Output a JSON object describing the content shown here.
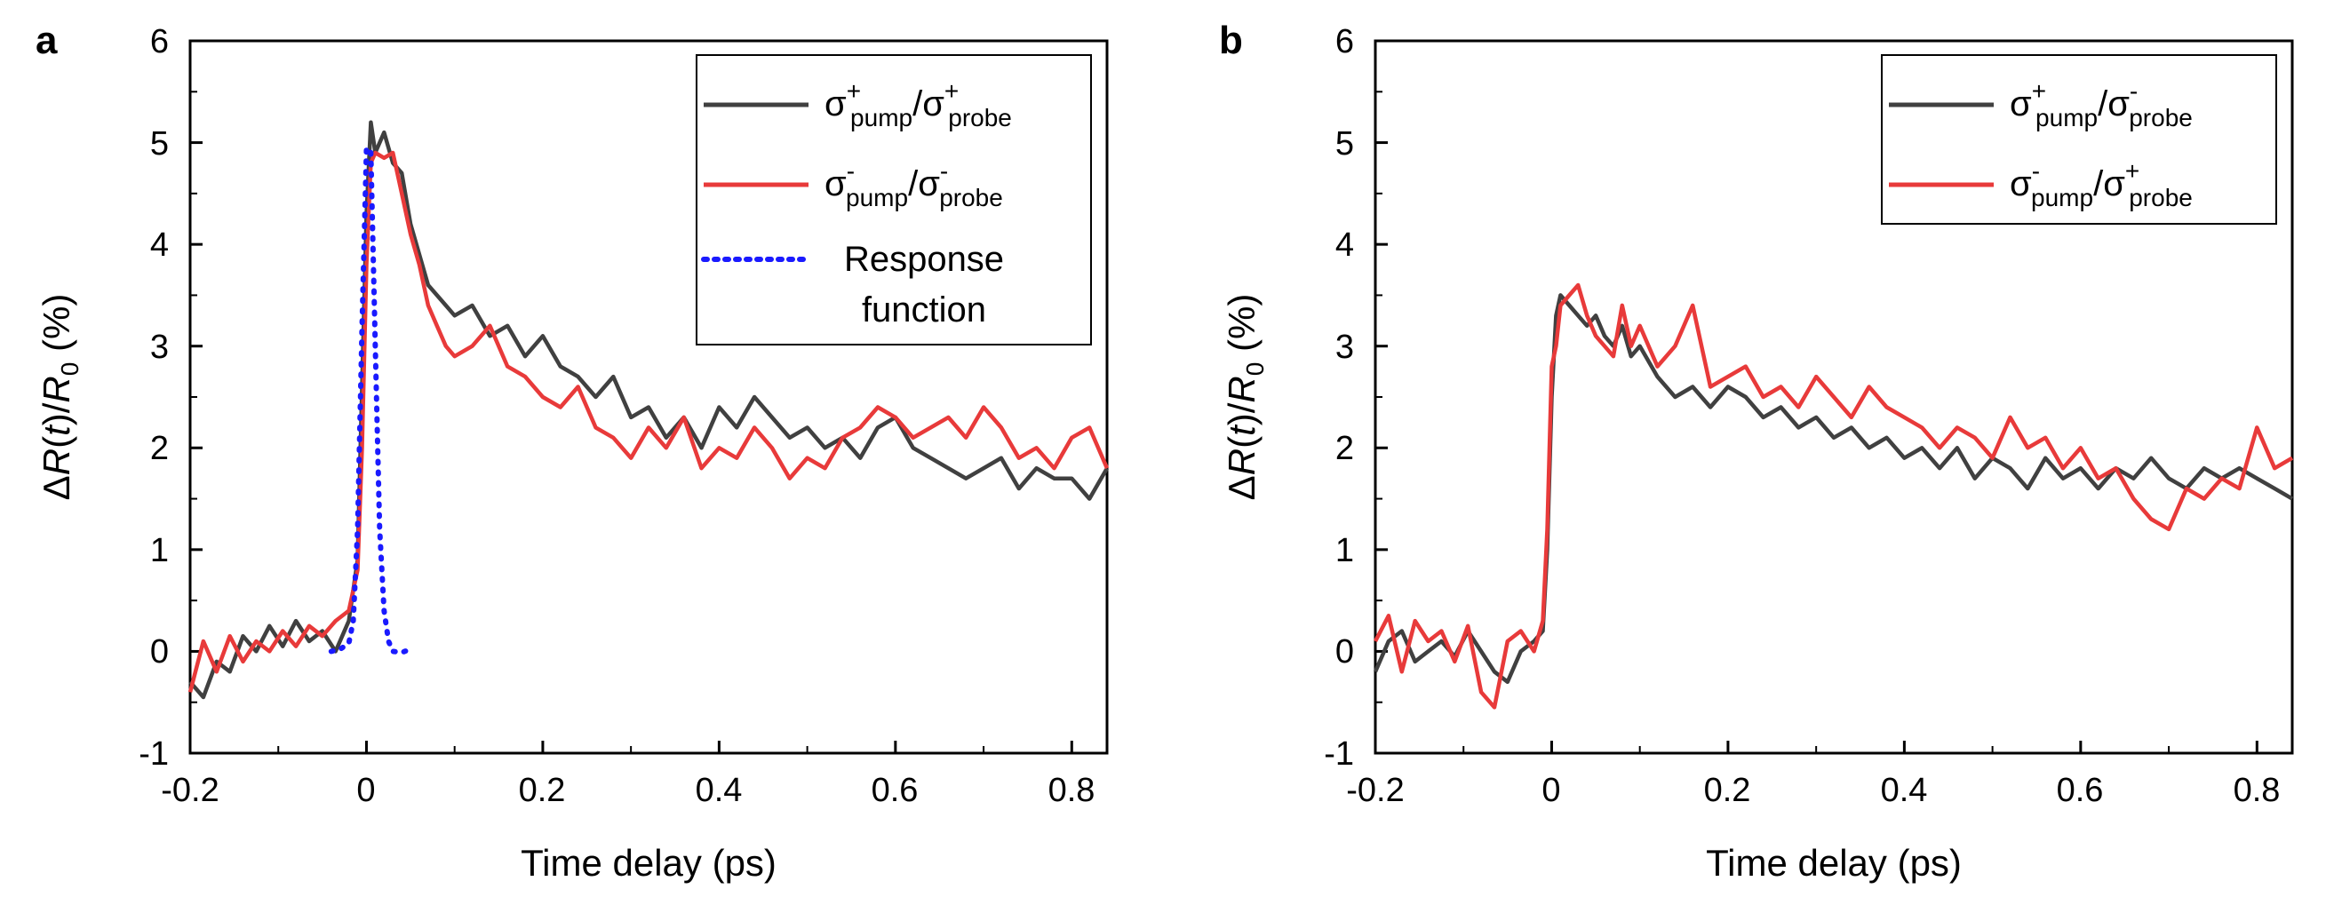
{
  "chart_data": [
    {
      "panel": "a",
      "type": "line",
      "xlabel": "Time delay (ps)",
      "ylabel": "ΔR(t)/R0 (%)",
      "xlim": [
        -0.2,
        0.84
      ],
      "ylim": [
        -1,
        6
      ],
      "xticks": [
        "-0.2",
        "0",
        "0.2",
        "0.4",
        "0.6",
        "0.8"
      ],
      "yticks": [
        "-1",
        "0",
        "1",
        "2",
        "3",
        "4",
        "5",
        "6"
      ],
      "legend_position": "top-right",
      "series": [
        {
          "name": "σ+pump/σ+probe",
          "legend": {
            "sym1": "σ",
            "sup1": "+",
            "sub1": "pump",
            "slash": "/",
            "sym2": "σ",
            "sup2": "+",
            "sub2": "probe"
          },
          "color": "#404040",
          "style": "solid",
          "x": [
            -0.2,
            -0.185,
            -0.17,
            -0.155,
            -0.14,
            -0.125,
            -0.11,
            -0.095,
            -0.08,
            -0.065,
            -0.05,
            -0.035,
            -0.02,
            -0.01,
            -0.005,
            0,
            0.005,
            0.01,
            0.02,
            0.03,
            0.04,
            0.05,
            0.06,
            0.07,
            0.08,
            0.09,
            0.1,
            0.12,
            0.14,
            0.16,
            0.18,
            0.2,
            0.22,
            0.24,
            0.26,
            0.28,
            0.3,
            0.32,
            0.34,
            0.36,
            0.38,
            0.4,
            0.42,
            0.44,
            0.46,
            0.48,
            0.5,
            0.52,
            0.54,
            0.56,
            0.58,
            0.6,
            0.62,
            0.64,
            0.66,
            0.68,
            0.7,
            0.72,
            0.74,
            0.76,
            0.78,
            0.8,
            0.82,
            0.84
          ],
          "y": [
            -0.3,
            -0.45,
            -0.1,
            -0.2,
            0.15,
            0.0,
            0.25,
            0.05,
            0.3,
            0.1,
            0.2,
            0.0,
            0.3,
            0.9,
            2.6,
            4.3,
            5.2,
            4.9,
            5.1,
            4.8,
            4.7,
            4.2,
            3.9,
            3.6,
            3.5,
            3.4,
            3.3,
            3.4,
            3.1,
            3.2,
            2.9,
            3.1,
            2.8,
            2.7,
            2.5,
            2.7,
            2.3,
            2.4,
            2.1,
            2.3,
            2.0,
            2.4,
            2.2,
            2.5,
            2.3,
            2.1,
            2.2,
            2.0,
            2.1,
            1.9,
            2.2,
            2.3,
            2.0,
            1.9,
            1.8,
            1.7,
            1.8,
            1.9,
            1.6,
            1.8,
            1.7,
            1.7,
            1.5,
            1.8
          ]
        },
        {
          "name": "σ-pump/σ-probe",
          "legend": {
            "sym1": "σ",
            "sup1": "-",
            "sub1": "pump",
            "slash": "/",
            "sym2": "σ",
            "sup2": "-",
            "sub2": "probe"
          },
          "color": "#e83a3a",
          "style": "solid",
          "x": [
            -0.2,
            -0.185,
            -0.17,
            -0.155,
            -0.14,
            -0.125,
            -0.11,
            -0.095,
            -0.08,
            -0.065,
            -0.05,
            -0.035,
            -0.02,
            -0.01,
            -0.005,
            0,
            0.005,
            0.01,
            0.02,
            0.03,
            0.04,
            0.05,
            0.06,
            0.07,
            0.08,
            0.09,
            0.1,
            0.12,
            0.14,
            0.16,
            0.18,
            0.2,
            0.22,
            0.24,
            0.26,
            0.28,
            0.3,
            0.32,
            0.34,
            0.36,
            0.38,
            0.4,
            0.42,
            0.44,
            0.46,
            0.48,
            0.5,
            0.52,
            0.54,
            0.56,
            0.58,
            0.6,
            0.62,
            0.64,
            0.66,
            0.68,
            0.7,
            0.72,
            0.74,
            0.76,
            0.78,
            0.8,
            0.82,
            0.84
          ],
          "y": [
            -0.4,
            0.1,
            -0.2,
            0.15,
            -0.1,
            0.1,
            0.0,
            0.2,
            0.05,
            0.25,
            0.15,
            0.3,
            0.4,
            0.8,
            2.0,
            3.8,
            4.8,
            4.9,
            4.85,
            4.9,
            4.5,
            4.1,
            3.8,
            3.4,
            3.2,
            3.0,
            2.9,
            3.0,
            3.2,
            2.8,
            2.7,
            2.5,
            2.4,
            2.6,
            2.2,
            2.1,
            1.9,
            2.2,
            2.0,
            2.3,
            1.8,
            2.0,
            1.9,
            2.2,
            2.0,
            1.7,
            1.9,
            1.8,
            2.1,
            2.2,
            2.4,
            2.3,
            2.1,
            2.2,
            2.3,
            2.1,
            2.4,
            2.2,
            1.9,
            2.0,
            1.8,
            2.1,
            2.2,
            1.8
          ]
        },
        {
          "name": "Response function",
          "legend": {
            "line1": "Response",
            "line2": "function"
          },
          "color": "#1a1aff",
          "style": "dotted",
          "x": [
            -0.04,
            -0.03,
            -0.02,
            -0.015,
            -0.01,
            -0.005,
            0,
            0.005,
            0.01,
            0.015,
            0.02,
            0.025,
            0.03,
            0.04,
            0.05
          ],
          "y": [
            0.0,
            0.02,
            0.08,
            0.3,
            1.2,
            3.2,
            4.95,
            4.9,
            3.0,
            1.2,
            0.4,
            0.1,
            0.0,
            -0.01,
            0.02
          ]
        }
      ]
    },
    {
      "panel": "b",
      "type": "line",
      "xlabel": "Time delay (ps)",
      "ylabel": "ΔR(t)/R0 (%)",
      "xlim": [
        -0.2,
        0.84
      ],
      "ylim": [
        -1,
        6
      ],
      "xticks": [
        "-0.2",
        "0",
        "0.2",
        "0.4",
        "0.6",
        "0.8"
      ],
      "yticks": [
        "-1",
        "0",
        "1",
        "2",
        "3",
        "4",
        "5",
        "6"
      ],
      "legend_position": "top-right",
      "series": [
        {
          "name": "σ+pump/σ-probe",
          "legend": {
            "sym1": "σ",
            "sup1": "+",
            "sub1": "pump",
            "slash": "/",
            "sym2": "σ",
            "sup2": "-",
            "sub2": "probe"
          },
          "color": "#404040",
          "style": "solid",
          "x": [
            -0.2,
            -0.185,
            -0.17,
            -0.155,
            -0.14,
            -0.125,
            -0.11,
            -0.095,
            -0.08,
            -0.065,
            -0.05,
            -0.035,
            -0.02,
            -0.01,
            -0.005,
            0,
            0.005,
            0.01,
            0.02,
            0.03,
            0.04,
            0.05,
            0.06,
            0.07,
            0.08,
            0.09,
            0.1,
            0.12,
            0.14,
            0.16,
            0.18,
            0.2,
            0.22,
            0.24,
            0.26,
            0.28,
            0.3,
            0.32,
            0.34,
            0.36,
            0.38,
            0.4,
            0.42,
            0.44,
            0.46,
            0.48,
            0.5,
            0.52,
            0.54,
            0.56,
            0.58,
            0.6,
            0.62,
            0.64,
            0.66,
            0.68,
            0.7,
            0.72,
            0.74,
            0.76,
            0.78,
            0.8,
            0.82,
            0.84
          ],
          "y": [
            -0.2,
            0.1,
            0.2,
            -0.1,
            0.0,
            0.1,
            -0.05,
            0.2,
            0.0,
            -0.2,
            -0.3,
            0.0,
            0.1,
            0.2,
            1.0,
            2.5,
            3.3,
            3.5,
            3.4,
            3.3,
            3.2,
            3.3,
            3.1,
            3.0,
            3.2,
            2.9,
            3.0,
            2.7,
            2.5,
            2.6,
            2.4,
            2.6,
            2.5,
            2.3,
            2.4,
            2.2,
            2.3,
            2.1,
            2.2,
            2.0,
            2.1,
            1.9,
            2.0,
            1.8,
            2.0,
            1.7,
            1.9,
            1.8,
            1.6,
            1.9,
            1.7,
            1.8,
            1.6,
            1.8,
            1.7,
            1.9,
            1.7,
            1.6,
            1.8,
            1.7,
            1.8,
            1.7,
            1.6,
            1.5
          ]
        },
        {
          "name": "σ-pump/σ+probe",
          "legend": {
            "sym1": "σ",
            "sup1": "-",
            "sub1": "pump",
            "slash": "/",
            "sym2": "σ",
            "sup2": "+",
            "sub2": "probe"
          },
          "color": "#e83a3a",
          "style": "solid",
          "x": [
            -0.2,
            -0.185,
            -0.17,
            -0.155,
            -0.14,
            -0.125,
            -0.11,
            -0.095,
            -0.08,
            -0.065,
            -0.05,
            -0.035,
            -0.02,
            -0.01,
            -0.005,
            0,
            0.005,
            0.01,
            0.02,
            0.03,
            0.04,
            0.05,
            0.06,
            0.07,
            0.08,
            0.09,
            0.1,
            0.12,
            0.14,
            0.16,
            0.18,
            0.2,
            0.22,
            0.24,
            0.26,
            0.28,
            0.3,
            0.32,
            0.34,
            0.36,
            0.38,
            0.4,
            0.42,
            0.44,
            0.46,
            0.48,
            0.5,
            0.52,
            0.54,
            0.56,
            0.58,
            0.6,
            0.62,
            0.64,
            0.66,
            0.68,
            0.7,
            0.72,
            0.74,
            0.76,
            0.78,
            0.8,
            0.82,
            0.84
          ],
          "y": [
            0.1,
            0.35,
            -0.2,
            0.3,
            0.1,
            0.2,
            -0.1,
            0.25,
            -0.4,
            -0.55,
            0.1,
            0.2,
            0.0,
            0.3,
            1.2,
            2.8,
            3.0,
            3.4,
            3.5,
            3.6,
            3.3,
            3.1,
            3.0,
            2.9,
            3.4,
            3.0,
            3.2,
            2.8,
            3.0,
            3.4,
            2.6,
            2.7,
            2.8,
            2.5,
            2.6,
            2.4,
            2.7,
            2.5,
            2.3,
            2.6,
            2.4,
            2.3,
            2.2,
            2.0,
            2.2,
            2.1,
            1.9,
            2.3,
            2.0,
            2.1,
            1.8,
            2.0,
            1.7,
            1.8,
            1.5,
            1.3,
            1.2,
            1.6,
            1.5,
            1.7,
            1.6,
            2.2,
            1.8,
            1.9
          ]
        }
      ]
    }
  ]
}
